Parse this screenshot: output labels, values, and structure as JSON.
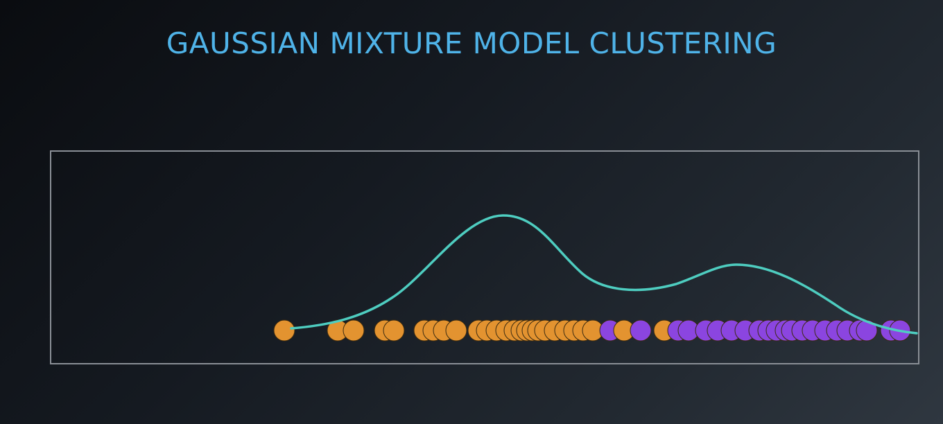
{
  "title": "GAUSSIAN MIXTURE MODEL CLUSTERING",
  "colors": {
    "title": "#4fb3e8",
    "curve": "#4ecdc0",
    "frame": "#8a8f96",
    "cluster_a": "#e39330",
    "cluster_b": "#8b45e0",
    "point_stroke": "#3a2a10"
  },
  "figure": {
    "curve": "mixture-density",
    "clusters": [
      "cluster-a",
      "cluster-b"
    ]
  }
}
